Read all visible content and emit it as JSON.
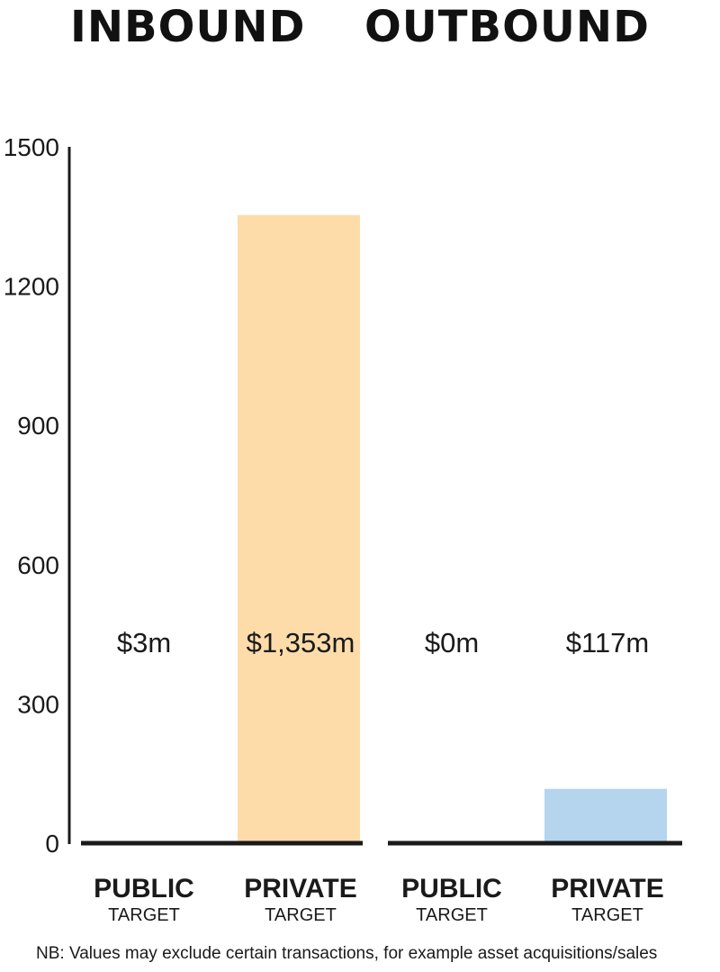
{
  "header": {
    "left": "INBOUND",
    "right": "OUTBOUND"
  },
  "chart_data": {
    "type": "bar",
    "ylim": [
      0,
      1500
    ],
    "yticks": [
      0,
      300,
      600,
      900,
      1200,
      1500
    ],
    "categories": [
      {
        "label": "PUBLIC",
        "sublabel": "TARGET"
      },
      {
        "label": "PRIVATE",
        "sublabel": "TARGET"
      },
      {
        "label": "PUBLIC",
        "sublabel": "TARGET"
      },
      {
        "label": "PRIVATE",
        "sublabel": "TARGET"
      }
    ],
    "values": [
      3,
      1353,
      0,
      117
    ],
    "value_labels": [
      "$3m",
      "$1,353m",
      "$0m",
      "$117m"
    ],
    "groups": [
      {
        "name": "INBOUND",
        "bar_color": "#fddcaa"
      },
      {
        "name": "OUTBOUND",
        "bar_color": "#b5d5ee"
      }
    ],
    "grid": false
  },
  "footnote": "NB: Values may exclude certain transactions, for example asset acquisitions/sales"
}
